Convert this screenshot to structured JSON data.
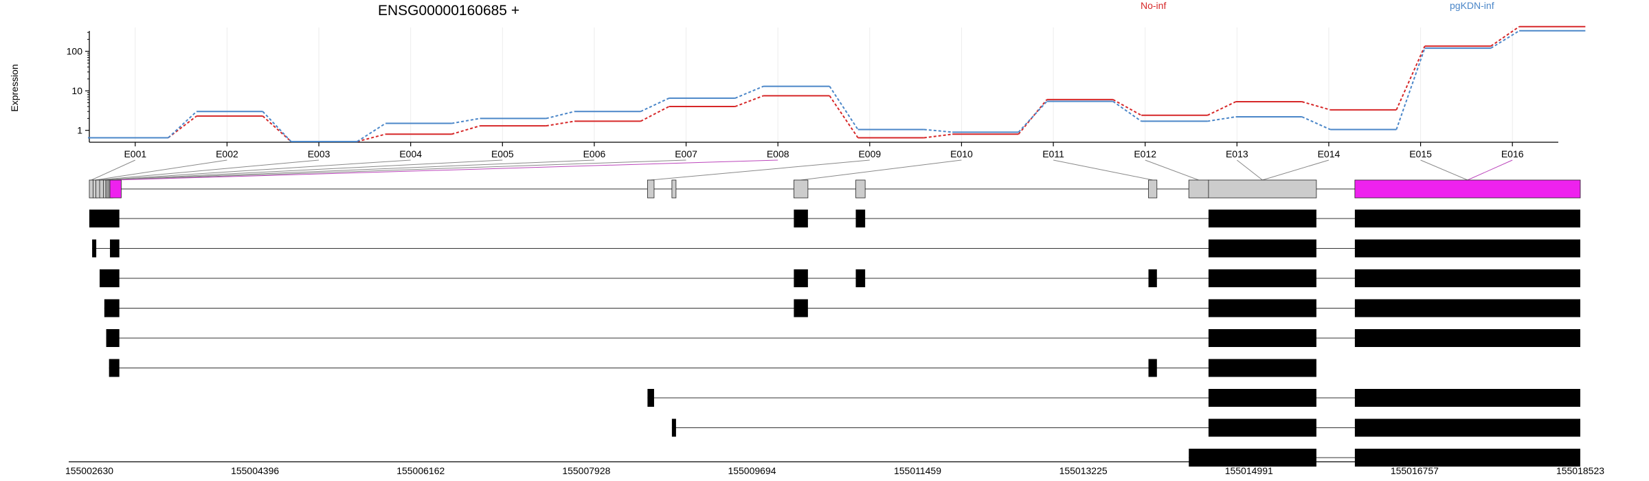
{
  "title": "ENSG00000160685 +",
  "chart_data": {
    "type": "line",
    "title": "ENSG00000160685 +",
    "ylabel": "Expression",
    "yscale": "log",
    "yticks": [
      1,
      10,
      100
    ],
    "ytick_labels": [
      "1",
      "10",
      "100"
    ],
    "ylim": [
      0.5,
      400
    ],
    "categories": [
      "E001",
      "E002",
      "E003",
      "E004",
      "E005",
      "E006",
      "E007",
      "E008",
      "E009",
      "E010",
      "E011",
      "E012",
      "E013",
      "E014",
      "E015",
      "E016"
    ],
    "series": [
      {
        "name": "No-inf",
        "color": "#d62728",
        "values": [
          0.65,
          2.3,
          0.52,
          0.8,
          1.3,
          1.7,
          4.0,
          7.5,
          0.65,
          0.8,
          6.0,
          2.4,
          5.3,
          3.3,
          135,
          420
        ]
      },
      {
        "name": "pgKDN-inf",
        "color": "#4a86c8",
        "values": [
          0.65,
          3.0,
          0.52,
          1.5,
          2.0,
          3.0,
          6.5,
          13.0,
          1.05,
          0.9,
          5.4,
          1.7,
          2.2,
          1.05,
          120,
          330
        ]
      }
    ],
    "grid": true,
    "legend": "top"
  },
  "gene_model": {
    "genomic_ticks": [
      "155002630",
      "155004396",
      "155006162",
      "155007928",
      "155009694",
      "155011459",
      "155013225",
      "155014991",
      "155016757",
      "155018523"
    ],
    "start": 155002630,
    "end": 155018523,
    "highlight_color": "#ee22ee",
    "exon_fill_color": "#cccccc",
    "exons": [
      {
        "start": 155002630,
        "end": 155002655
      },
      {
        "start": 155002670,
        "end": 155002690
      },
      {
        "start": 155002700,
        "end": 155002720
      },
      {
        "start": 155002740,
        "end": 155002760
      },
      {
        "start": 155002780,
        "end": 155002795
      },
      {
        "start": 155002805,
        "end": 155002815
      },
      {
        "start": 155002820,
        "end": 155002832
      },
      {
        "start": 155002838,
        "end": 155002850
      },
      {
        "start": 155002850,
        "end": 155002970,
        "highlight": true
      },
      {
        "start": 155008580,
        "end": 155008650
      },
      {
        "start": 155008840,
        "end": 155008870
      },
      {
        "start": 155010140,
        "end": 155010290
      },
      {
        "start": 155010800,
        "end": 155010900
      },
      {
        "start": 155013920,
        "end": 155014010
      },
      {
        "start": 155014350,
        "end": 155014560
      },
      {
        "start": 155014560,
        "end": 155015710
      },
      {
        "start": 155016120,
        "end": 155018523,
        "highlight": true
      }
    ],
    "transcripts": [
      [
        [
          155002630,
          155002950
        ],
        [
          155010140,
          155010290
        ],
        [
          155010800,
          155010900
        ],
        [
          155014560,
          155015710
        ],
        [
          155016120,
          155018523
        ]
      ],
      [
        [
          155002660,
          155002690
        ],
        [
          155002850,
          155002950
        ],
        [
          155014560,
          155015710
        ],
        [
          155016120,
          155018523
        ]
      ],
      [
        [
          155002740,
          155002950
        ],
        [
          155010140,
          155010290
        ],
        [
          155010800,
          155010900
        ],
        [
          155013920,
          155014010
        ],
        [
          155014560,
          155015710
        ],
        [
          155016120,
          155018523
        ]
      ],
      [
        [
          155002790,
          155002950
        ],
        [
          155010140,
          155010290
        ],
        [
          155014560,
          155015710
        ],
        [
          155016120,
          155018523
        ]
      ],
      [
        [
          155002810,
          155002950
        ],
        [
          155014560,
          155015710
        ],
        [
          155016120,
          155018523
        ]
      ],
      [
        [
          155002840,
          155002950
        ],
        [
          155013920,
          155014010
        ],
        [
          155014560,
          155015710
        ]
      ],
      [
        [
          155008580,
          155008650
        ],
        [
          155014560,
          155015710
        ],
        [
          155016120,
          155018523
        ]
      ],
      [
        [
          155008840,
          155008870
        ],
        [
          155014560,
          155015710
        ],
        [
          155016120,
          155018523
        ]
      ],
      [
        [
          155014350,
          155015710
        ],
        [
          155016120,
          155018523
        ]
      ]
    ]
  }
}
